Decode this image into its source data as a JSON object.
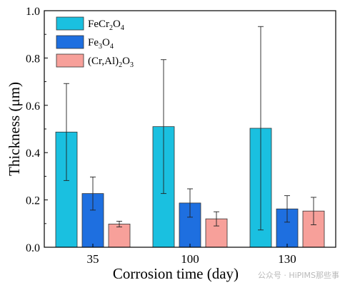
{
  "chart_data": {
    "type": "bar",
    "categories": [
      "35",
      "100",
      "130"
    ],
    "series": [
      {
        "name": "FeCr2O4",
        "name_base": "FeCr",
        "name_parts": [
          [
            "FeCr",
            false
          ],
          [
            "2",
            true
          ],
          [
            "O",
            false
          ],
          [
            "4",
            true
          ]
        ],
        "color": "#1ac0e0",
        "values": [
          0.487,
          0.51,
          0.503
        ],
        "errors": [
          0.205,
          0.283,
          0.43
        ]
      },
      {
        "name": "Fe3O4",
        "name_parts": [
          [
            "Fe",
            false
          ],
          [
            "3",
            true
          ],
          [
            "O",
            false
          ],
          [
            "4",
            true
          ]
        ],
        "color": "#1e6fe0",
        "values": [
          0.227,
          0.187,
          0.162
        ],
        "errors": [
          0.07,
          0.06,
          0.056
        ]
      },
      {
        "name": "(Cr,Al)2O3",
        "name_parts": [
          [
            "(Cr,Al)",
            false
          ],
          [
            "2",
            true
          ],
          [
            "O",
            false
          ],
          [
            "3",
            true
          ]
        ],
        "color": "#f7a09a",
        "values": [
          0.098,
          0.12,
          0.153
        ],
        "errors": [
          0.012,
          0.03,
          0.058
        ]
      }
    ],
    "xlabel": "Corrosion time (day)",
    "ylabel": "Thickness (μm)",
    "ylim": [
      0,
      1.0
    ],
    "yticks": [
      "0.0",
      "0.2",
      "0.4",
      "0.6",
      "0.8",
      "1.0"
    ],
    "grid": false,
    "legend_position": "top-left"
  },
  "watermark": "公众号 · HiPIMS那些事"
}
